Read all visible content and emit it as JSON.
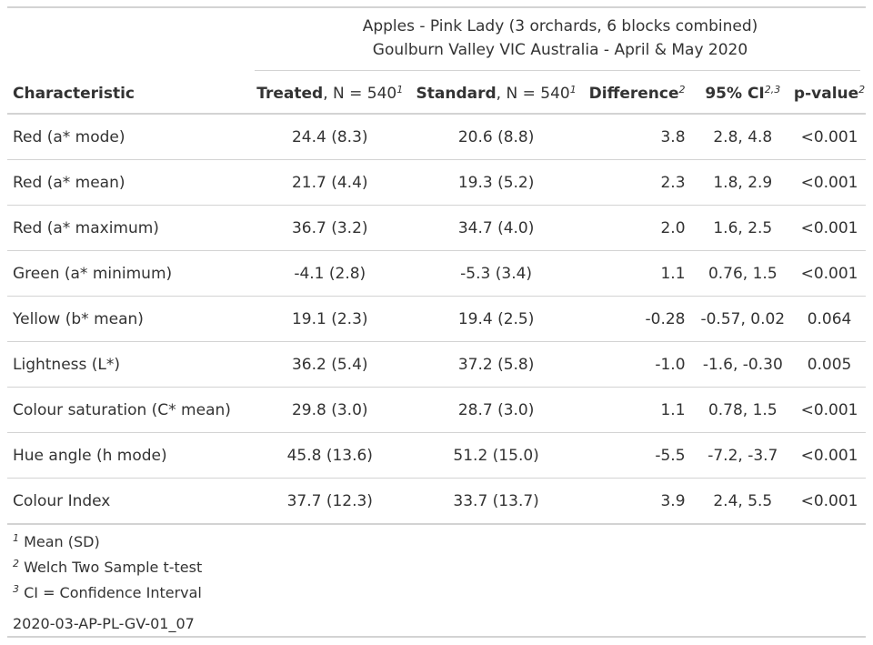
{
  "table": {
    "spanner": {
      "line1": "Apples - Pink Lady (3 orchards, 6 blocks combined)",
      "line2": "Goulburn Valley VIC Australia - April & May 2020"
    },
    "headers": {
      "characteristic": "Characteristic",
      "treated_bold": "Treated",
      "treated_rest": ", N = 540",
      "treated_sup": "1",
      "standard_bold": "Standard",
      "standard_rest": ", N = 540",
      "standard_sup": "1",
      "difference": "Difference",
      "difference_sup": "2",
      "ci": "95% CI",
      "ci_sup": "2,3",
      "pvalue": "p-value",
      "pvalue_sup": "2"
    },
    "rows": [
      {
        "characteristic": "Red (a* mode)",
        "treated": "24.4 (8.3)",
        "standard": "20.6 (8.8)",
        "difference": "3.8",
        "ci": "2.8, 4.8",
        "p": "<0.001"
      },
      {
        "characteristic": "Red (a* mean)",
        "treated": "21.7 (4.4)",
        "standard": "19.3 (5.2)",
        "difference": "2.3",
        "ci": "1.8, 2.9",
        "p": "<0.001"
      },
      {
        "characteristic": "Red (a* maximum)",
        "treated": "36.7 (3.2)",
        "standard": "34.7 (4.0)",
        "difference": "2.0",
        "ci": "1.6, 2.5",
        "p": "<0.001"
      },
      {
        "characteristic": "Green (a* minimum)",
        "treated": "-4.1 (2.8)",
        "standard": "-5.3 (3.4)",
        "difference": "1.1",
        "ci": "0.76, 1.5",
        "p": "<0.001"
      },
      {
        "characteristic": "Yellow (b* mean)",
        "treated": "19.1 (2.3)",
        "standard": "19.4 (2.5)",
        "difference": "-0.28",
        "ci": "-0.57, 0.02",
        "p": "0.064"
      },
      {
        "characteristic": "Lightness (L*)",
        "treated": "36.2 (5.4)",
        "standard": "37.2 (5.8)",
        "difference": "-1.0",
        "ci": "-1.6, -0.30",
        "p": "0.005"
      },
      {
        "characteristic": "Colour saturation (C* mean)",
        "treated": "29.8 (3.0)",
        "standard": "28.7 (3.0)",
        "difference": "1.1",
        "ci": "0.78, 1.5",
        "p": "<0.001"
      },
      {
        "characteristic": "Hue angle (h mode)",
        "treated": "45.8 (13.6)",
        "standard": "51.2 (15.0)",
        "difference": "-5.5",
        "ci": "-7.2, -3.7",
        "p": "<0.001"
      },
      {
        "characteristic": "Colour Index",
        "treated": "37.7 (12.3)",
        "standard": "33.7 (13.7)",
        "difference": "3.9",
        "ci": "2.4, 5.5",
        "p": "<0.001"
      }
    ],
    "footnotes": [
      {
        "mark": "1",
        "text": " Mean (SD)"
      },
      {
        "mark": "2",
        "text": " Welch Two Sample t-test"
      },
      {
        "mark": "3",
        "text": " CI = Confidence Interval"
      }
    ],
    "source_code": "2020-03-AP-PL-GV-01_07"
  }
}
